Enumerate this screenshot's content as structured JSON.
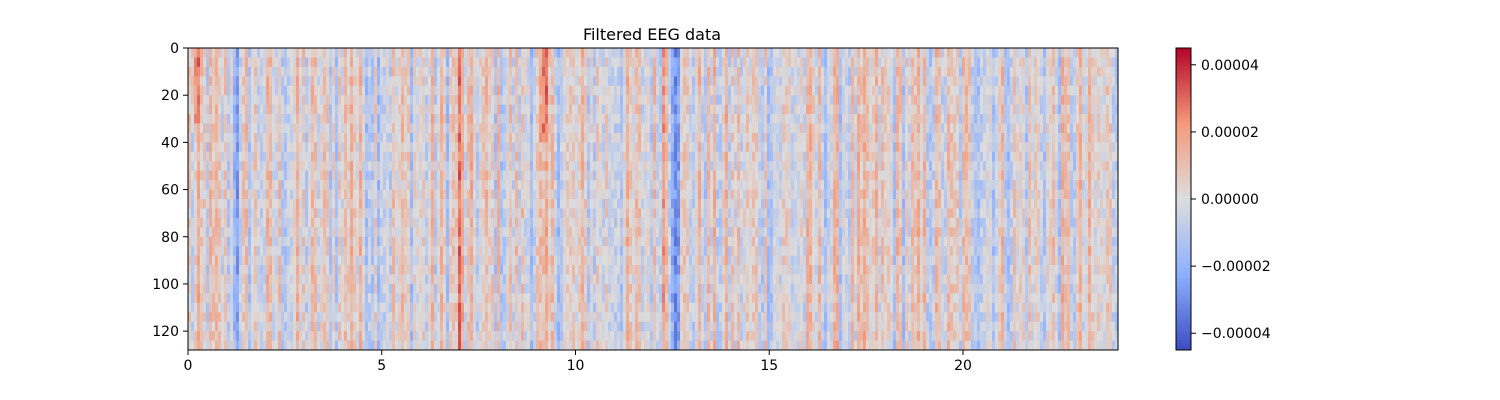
{
  "chart_data": {
    "type": "heatmap",
    "title": "Filtered EEG data",
    "xlabel": "",
    "ylabel": "",
    "xlim": [
      0,
      24
    ],
    "ylim": [
      128,
      0
    ],
    "rows": 128,
    "x_ticks": [
      {
        "value": 0,
        "label": "0"
      },
      {
        "value": 5,
        "label": "5"
      },
      {
        "value": 10,
        "label": "10"
      },
      {
        "value": 15,
        "label": "15"
      },
      {
        "value": 20,
        "label": "20"
      }
    ],
    "y_ticks": [
      {
        "value": 0,
        "label": "0"
      },
      {
        "value": 20,
        "label": "20"
      },
      {
        "value": 40,
        "label": "40"
      },
      {
        "value": 60,
        "label": "60"
      },
      {
        "value": 80,
        "label": "80"
      },
      {
        "value": 100,
        "label": "100"
      },
      {
        "value": 120,
        "label": "120"
      }
    ],
    "colormap": "coolwarm",
    "color_min": -4.5e-05,
    "color_max": 4.5e-05,
    "colorbar_ticks": [
      {
        "value": 4e-05,
        "label": "0.00004"
      },
      {
        "value": 2e-05,
        "label": "0.00002"
      },
      {
        "value": 0.0,
        "label": "0.00000"
      },
      {
        "value": -2e-05,
        "label": "−0.00002"
      },
      {
        "value": -4e-05,
        "label": "−0.00004"
      }
    ],
    "grid": false,
    "notable_features": [
      {
        "x": 0.2,
        "rows": [
          0,
          30
        ],
        "sign": "positive"
      },
      {
        "x": 4.2,
        "rows": [
          0,
          128
        ],
        "sign": "positive"
      },
      {
        "x": 7.0,
        "rows": [
          0,
          128
        ],
        "sign": "positive"
      },
      {
        "x": 9.2,
        "rows": [
          0,
          40
        ],
        "sign": "positive"
      },
      {
        "x": 12.3,
        "rows": [
          0,
          128
        ],
        "sign": "positive"
      },
      {
        "x": 12.6,
        "rows": [
          0,
          128
        ],
        "sign": "negative"
      },
      {
        "x": 1.3,
        "rows": [
          0,
          128
        ],
        "sign": "negative"
      }
    ]
  }
}
